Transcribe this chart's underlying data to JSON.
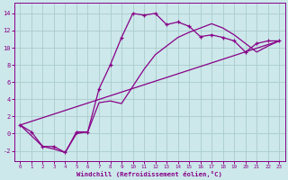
{
  "xlabel": "Windchill (Refroidissement éolien,°C)",
  "bg_color": "#cce8ea",
  "grid_color": "#aacccc",
  "line_color": "#880088",
  "xlim": [
    -0.5,
    23.5
  ],
  "ylim": [
    -3.2,
    15.2
  ],
  "xticks": [
    0,
    1,
    2,
    3,
    4,
    5,
    6,
    7,
    8,
    9,
    10,
    11,
    12,
    13,
    14,
    15,
    16,
    17,
    18,
    19,
    20,
    21,
    22,
    23
  ],
  "yticks": [
    -2,
    0,
    2,
    4,
    6,
    8,
    10,
    12,
    14
  ],
  "line1_x": [
    0,
    1,
    2,
    3,
    4,
    5,
    6,
    7,
    8,
    9,
    10,
    11,
    12,
    13,
    14,
    15,
    16,
    17,
    18,
    19,
    20,
    21,
    22,
    23
  ],
  "line1_y": [
    1.0,
    0.2,
    -1.5,
    -1.5,
    -2.2,
    0.2,
    0.2,
    5.2,
    8.0,
    11.2,
    14.0,
    13.8,
    14.0,
    12.7,
    13.0,
    12.5,
    11.3,
    11.5,
    11.2,
    10.8,
    9.5,
    10.5,
    10.8,
    10.8
  ],
  "line2_x": [
    0,
    2,
    3,
    4,
    5,
    6,
    7,
    8,
    9,
    10,
    11,
    12,
    13,
    14,
    15,
    16,
    17,
    18,
    19,
    20,
    21,
    22,
    23
  ],
  "line2_y": [
    1.0,
    -1.5,
    -1.8,
    -2.2,
    0.0,
    0.2,
    3.6,
    3.8,
    3.5,
    5.5,
    7.5,
    9.2,
    10.2,
    11.2,
    11.8,
    12.3,
    12.8,
    12.3,
    11.5,
    10.5,
    9.5,
    10.2,
    10.8
  ],
  "line3_x": [
    0,
    23
  ],
  "line3_y": [
    1.0,
    10.8
  ]
}
